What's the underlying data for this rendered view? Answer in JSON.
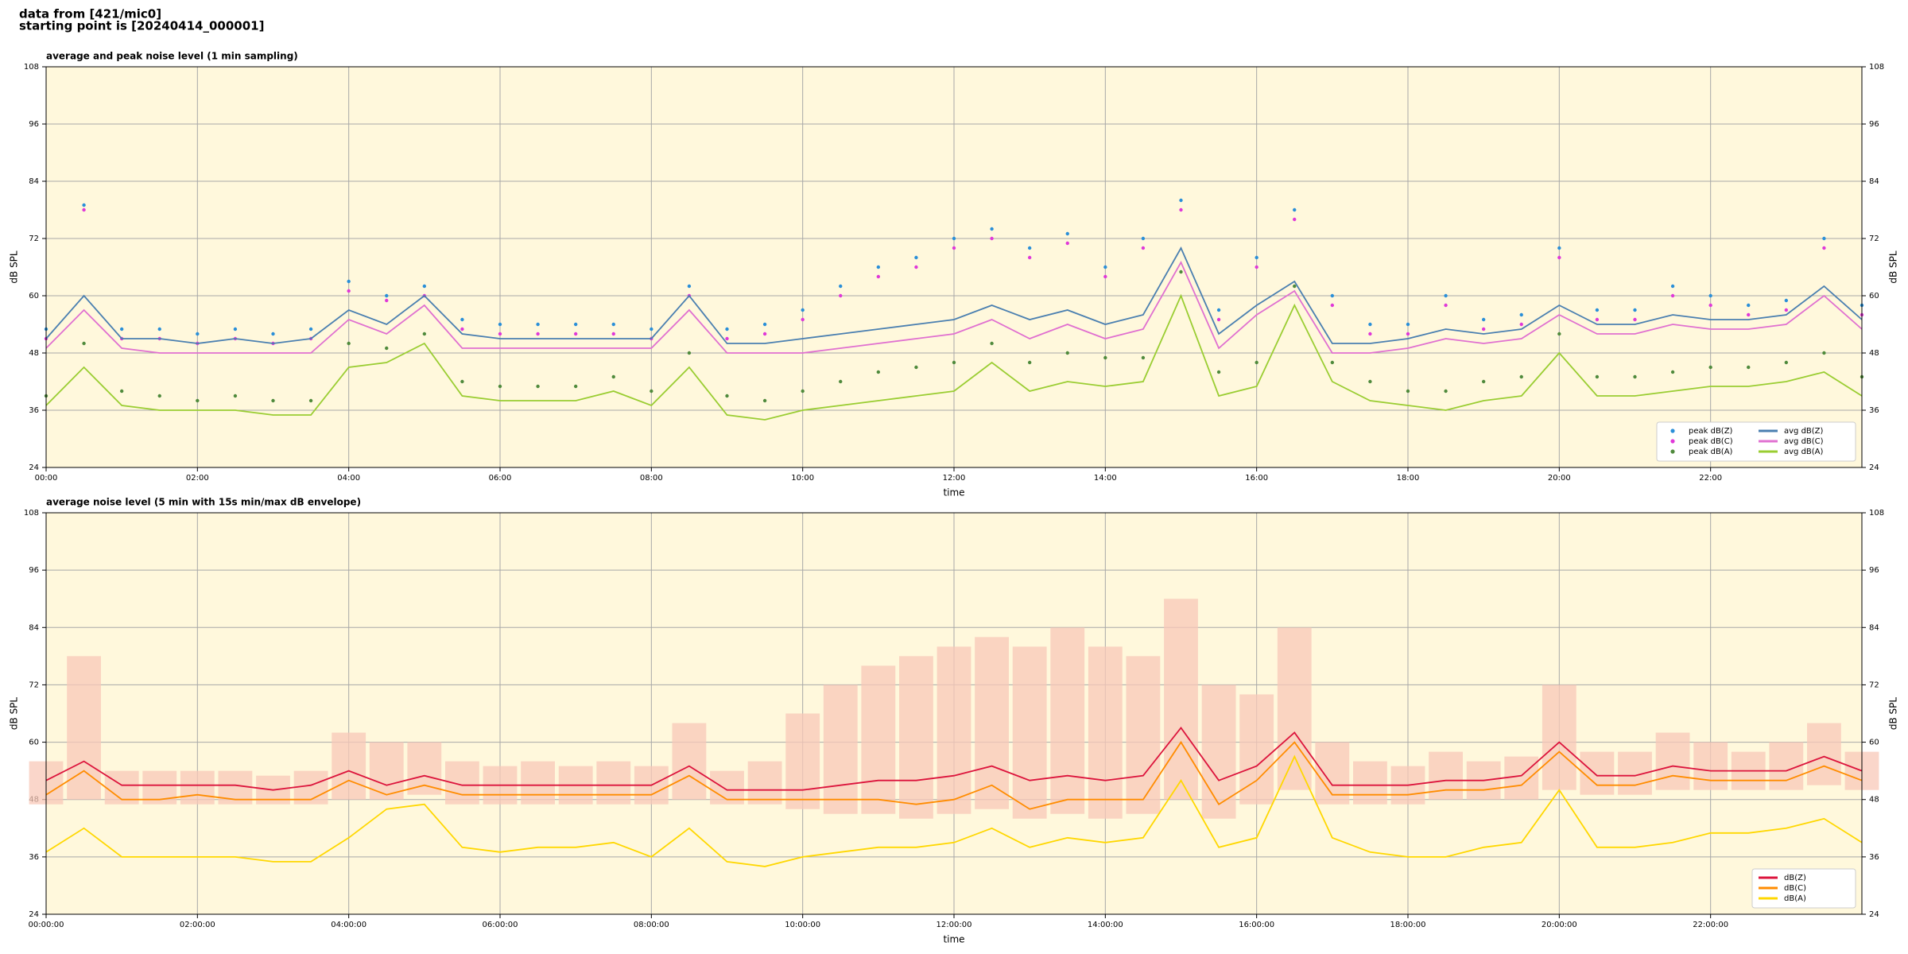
{
  "header": {
    "lines": [
      "data from [421/mic0]",
      "starting point is [20240414_000001]"
    ]
  },
  "chart_data": [
    {
      "type": "line",
      "title": "average and peak noise level (1 min sampling)",
      "xlabel": "time",
      "ylabel": "dB SPL",
      "x": [
        0,
        0.5,
        1,
        1.5,
        2,
        2.5,
        3,
        3.5,
        4,
        4.5,
        5,
        5.5,
        6,
        6.5,
        7,
        7.5,
        8,
        8.5,
        9,
        9.5,
        10,
        10.5,
        11,
        11.5,
        12,
        12.5,
        13,
        13.5,
        14,
        14.5,
        15,
        15.5,
        16,
        16.5,
        17,
        17.5,
        18,
        18.5,
        19,
        19.5,
        20,
        20.5,
        21,
        21.5,
        22,
        22.5,
        23,
        23.5,
        24
      ],
      "xlim": [
        0,
        24
      ],
      "xticks": [
        {
          "value": 0,
          "label": "00:00"
        },
        {
          "value": 2,
          "label": "02:00"
        },
        {
          "value": 4,
          "label": "04:00"
        },
        {
          "value": 6,
          "label": "06:00"
        },
        {
          "value": 8,
          "label": "08:00"
        },
        {
          "value": 10,
          "label": "10:00"
        },
        {
          "value": 12,
          "label": "12:00"
        },
        {
          "value": 14,
          "label": "14:00"
        },
        {
          "value": 16,
          "label": "16:00"
        },
        {
          "value": 18,
          "label": "18:00"
        },
        {
          "value": 20,
          "label": "20:00"
        },
        {
          "value": 22,
          "label": "22:00"
        }
      ],
      "ylim": [
        24,
        108
      ],
      "yticks": [
        24,
        36,
        48,
        60,
        72,
        84,
        96,
        108
      ],
      "grid": true,
      "legend": "lower right",
      "legend_ncol": 2,
      "series": [
        {
          "name": "peak dB(Z)",
          "mark": "dots",
          "color": "#2a8fd8",
          "values": [
            53,
            79,
            53,
            53,
            52,
            53,
            52,
            53,
            63,
            60,
            62,
            55,
            54,
            54,
            54,
            54,
            53,
            62,
            53,
            54,
            57,
            62,
            66,
            68,
            72,
            74,
            70,
            73,
            66,
            72,
            80,
            57,
            68,
            78,
            60,
            54,
            54,
            60,
            55,
            56,
            70,
            57,
            57,
            62,
            60,
            58,
            59,
            72,
            58
          ]
        },
        {
          "name": "peak dB(C)",
          "mark": "dots",
          "color": "#e038d8",
          "values": [
            51,
            78,
            51,
            51,
            50,
            51,
            50,
            51,
            61,
            59,
            60,
            53,
            52,
            52,
            52,
            52,
            51,
            60,
            51,
            52,
            55,
            60,
            64,
            66,
            70,
            72,
            68,
            71,
            64,
            70,
            78,
            55,
            66,
            76,
            58,
            52,
            52,
            58,
            53,
            54,
            68,
            55,
            55,
            60,
            58,
            56,
            57,
            70,
            56
          ]
        },
        {
          "name": "peak dB(A)",
          "mark": "dots",
          "color": "#4f8a3c",
          "values": [
            39,
            50,
            40,
            39,
            38,
            39,
            38,
            38,
            50,
            49,
            52,
            42,
            41,
            41,
            41,
            43,
            40,
            48,
            39,
            38,
            40,
            42,
            44,
            45,
            46,
            50,
            46,
            48,
            47,
            47,
            65,
            44,
            46,
            62,
            46,
            42,
            40,
            40,
            42,
            43,
            52,
            43,
            43,
            44,
            45,
            45,
            46,
            48,
            43
          ]
        },
        {
          "name": "avg dB(Z)",
          "mark": "line",
          "color": "#4a7fb0",
          "values": [
            51,
            60,
            51,
            51,
            50,
            51,
            50,
            51,
            57,
            54,
            60,
            52,
            51,
            51,
            51,
            51,
            51,
            60,
            50,
            50,
            51,
            52,
            53,
            54,
            55,
            58,
            55,
            57,
            54,
            56,
            70,
            52,
            58,
            63,
            50,
            50,
            51,
            53,
            52,
            53,
            58,
            54,
            54,
            56,
            55,
            55,
            56,
            62,
            55
          ]
        },
        {
          "name": "avg dB(C)",
          "mark": "line",
          "color": "#e070d0",
          "values": [
            49,
            57,
            49,
            48,
            48,
            48,
            48,
            48,
            55,
            52,
            58,
            49,
            49,
            49,
            49,
            49,
            49,
            57,
            48,
            48,
            48,
            49,
            50,
            51,
            52,
            55,
            51,
            54,
            51,
            53,
            67,
            49,
            56,
            61,
            48,
            48,
            49,
            51,
            50,
            51,
            56,
            52,
            52,
            54,
            53,
            53,
            54,
            60,
            53
          ]
        },
        {
          "name": "avg dB(A)",
          "mark": "line",
          "color": "#9acd32",
          "values": [
            37,
            45,
            37,
            36,
            36,
            36,
            35,
            35,
            45,
            46,
            50,
            39,
            38,
            38,
            38,
            40,
            37,
            45,
            35,
            34,
            36,
            37,
            38,
            39,
            40,
            46,
            40,
            42,
            41,
            42,
            60,
            39,
            41,
            58,
            42,
            38,
            37,
            36,
            38,
            39,
            48,
            39,
            39,
            40,
            41,
            41,
            42,
            44,
            39
          ]
        }
      ]
    },
    {
      "type": "line",
      "title": "average noise level (5 min with 15s min/max dB envelope)",
      "xlabel": "time",
      "ylabel": "dB SPL",
      "x": [
        0,
        0.5,
        1,
        1.5,
        2,
        2.5,
        3,
        3.5,
        4,
        4.5,
        5,
        5.5,
        6,
        6.5,
        7,
        7.5,
        8,
        8.5,
        9,
        9.5,
        10,
        10.5,
        11,
        11.5,
        12,
        12.5,
        13,
        13.5,
        14,
        14.5,
        15,
        15.5,
        16,
        16.5,
        17,
        17.5,
        18,
        18.5,
        19,
        19.5,
        20,
        20.5,
        21,
        21.5,
        22,
        22.5,
        23,
        23.5,
        24
      ],
      "xlim": [
        0,
        24
      ],
      "xticks": [
        {
          "value": 0,
          "label": "00:00:00"
        },
        {
          "value": 2,
          "label": "02:00:00"
        },
        {
          "value": 4,
          "label": "04:00:00"
        },
        {
          "value": 6,
          "label": "06:00:00"
        },
        {
          "value": 8,
          "label": "08:00:00"
        },
        {
          "value": 10,
          "label": "10:00:00"
        },
        {
          "value": 12,
          "label": "12:00:00"
        },
        {
          "value": 14,
          "label": "14:00:00"
        },
        {
          "value": 16,
          "label": "16:00:00"
        },
        {
          "value": 18,
          "label": "18:00:00"
        },
        {
          "value": 20,
          "label": "20:00:00"
        },
        {
          "value": 22,
          "label": "22:00:00"
        }
      ],
      "ylim": [
        24,
        108
      ],
      "yticks": [
        24,
        36,
        48,
        60,
        72,
        84,
        96,
        108
      ],
      "grid": true,
      "legend": "lower right",
      "legend_ncol": 1,
      "envelope": {
        "color": "#f8c8b8",
        "lower": [
          47,
          48,
          47,
          47,
          47,
          47,
          47,
          47,
          48,
          48,
          49,
          47,
          47,
          47,
          47,
          47,
          47,
          48,
          47,
          47,
          46,
          45,
          45,
          44,
          45,
          46,
          44,
          45,
          44,
          45,
          48,
          44,
          47,
          50,
          47,
          47,
          47,
          48,
          48,
          48,
          50,
          49,
          49,
          50,
          50,
          50,
          50,
          51,
          50
        ],
        "upper": [
          56,
          78,
          54,
          54,
          54,
          54,
          53,
          54,
          62,
          60,
          60,
          56,
          55,
          56,
          55,
          56,
          55,
          64,
          54,
          56,
          66,
          72,
          76,
          78,
          80,
          82,
          80,
          84,
          80,
          78,
          90,
          72,
          70,
          84,
          60,
          56,
          55,
          58,
          56,
          57,
          72,
          58,
          58,
          62,
          60,
          58,
          60,
          64,
          58
        ]
      },
      "series": [
        {
          "name": "dB(Z)",
          "mark": "line",
          "color": "#dc143c",
          "values": [
            52,
            56,
            51,
            51,
            51,
            51,
            50,
            51,
            54,
            51,
            53,
            51,
            51,
            51,
            51,
            51,
            51,
            55,
            50,
            50,
            50,
            51,
            52,
            52,
            53,
            55,
            52,
            53,
            52,
            53,
            63,
            52,
            55,
            62,
            51,
            51,
            51,
            52,
            52,
            53,
            60,
            53,
            53,
            55,
            54,
            54,
            54,
            57,
            54
          ]
        },
        {
          "name": "dB(C)",
          "mark": "line",
          "color": "#ff8c00",
          "values": [
            49,
            54,
            48,
            48,
            49,
            48,
            48,
            48,
            52,
            49,
            51,
            49,
            49,
            49,
            49,
            49,
            49,
            53,
            48,
            48,
            48,
            48,
            48,
            47,
            48,
            51,
            46,
            48,
            48,
            48,
            60,
            47,
            52,
            60,
            49,
            49,
            49,
            50,
            50,
            51,
            58,
            51,
            51,
            53,
            52,
            52,
            52,
            55,
            52
          ]
        },
        {
          "name": "dB(A)",
          "mark": "line",
          "color": "#ffd700",
          "values": [
            37,
            42,
            36,
            36,
            36,
            36,
            35,
            35,
            40,
            46,
            47,
            38,
            37,
            38,
            38,
            39,
            36,
            42,
            35,
            34,
            36,
            37,
            38,
            38,
            39,
            42,
            38,
            40,
            39,
            40,
            52,
            38,
            40,
            57,
            40,
            37,
            36,
            36,
            38,
            39,
            50,
            38,
            38,
            39,
            41,
            41,
            42,
            44,
            39
          ]
        }
      ]
    }
  ]
}
